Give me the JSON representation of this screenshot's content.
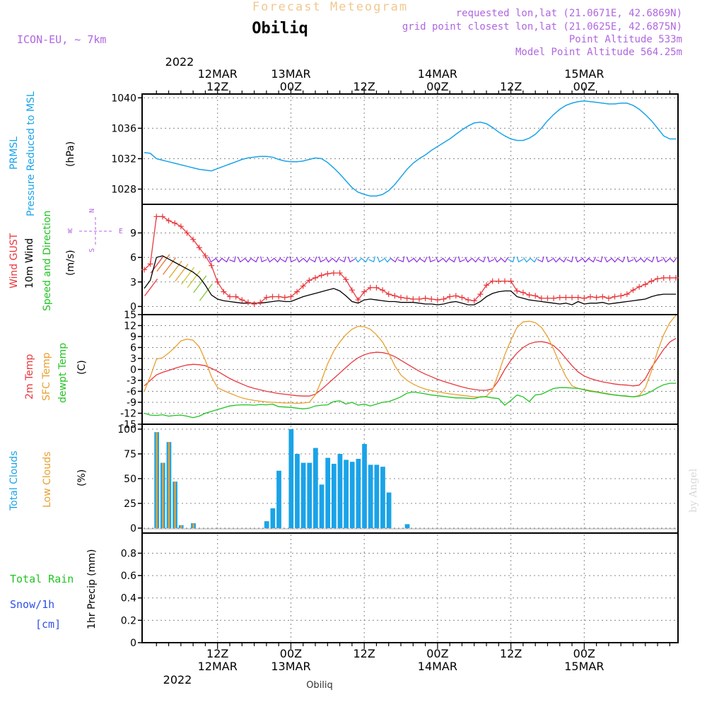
{
  "header": {
    "super_title": "Forecast Meteogram",
    "location": "Obiliq",
    "model": "ICON-EU, ~ 7km",
    "requested": "requested lon,lat (21.0671E, 42.6869N)",
    "grid_point": "grid point closest lon,lat (21.0625E, 42.6875N)",
    "point_alt": "Point Altitude 533m",
    "model_alt": "Model Point Altitude 564.25m"
  },
  "time_axis": {
    "top_year": "2022",
    "top_labels": [
      {
        "t": 12,
        "l1": "12MAR",
        "l2": "12Z"
      },
      {
        "t": 24,
        "l1": "13MAR",
        "l2": "00Z"
      },
      {
        "t": 36,
        "l1": "",
        "l2": "12Z"
      },
      {
        "t": 48,
        "l1": "14MAR",
        "l2": "00Z"
      },
      {
        "t": 60,
        "l1": "",
        "l2": "12Z"
      },
      {
        "t": 72,
        "l1": "15MAR",
        "l2": "00Z"
      }
    ],
    "bottom_labels": [
      {
        "t": 12,
        "l1": "12Z",
        "l2": "12MAR"
      },
      {
        "t": 24,
        "l1": "00Z",
        "l2": "13MAR"
      },
      {
        "t": 36,
        "l1": "12Z",
        "l2": ""
      },
      {
        "t": 48,
        "l1": "00Z",
        "l2": "14MAR"
      },
      {
        "t": 60,
        "l1": "12Z",
        "l2": ""
      },
      {
        "t": 72,
        "l1": "00Z",
        "l2": "15MAR"
      }
    ],
    "bottom_year": "2022",
    "footer_location": "Obiliq"
  },
  "watermark": "by Angel",
  "panels": {
    "pressure": {
      "labels": [
        "PRMSL",
        "Pressure Reduced to MSL"
      ],
      "unit": "(hPa)",
      "ticks": [
        "1028",
        "1032",
        "1036",
        "1040"
      ],
      "color": "#1aa3e8"
    },
    "wind": {
      "labels": [
        "Wind GUST",
        "10m Wind",
        "Speed and Direction"
      ],
      "unit": "(m/s)",
      "ticks": [
        "0",
        "3",
        "6",
        "9"
      ],
      "compass": {
        "n": "N",
        "s": "S",
        "w": "W",
        "e": "E"
      },
      "colors": {
        "gust": "#e8383d",
        "wind": "#000000",
        "dir": "#22c322",
        "arrows": "#8a2be2"
      }
    },
    "temp": {
      "labels": [
        "2m Temp",
        "SFC Temp",
        "dewpt Temp"
      ],
      "unit": "(C)",
      "ticks": [
        "-15",
        "-12",
        "-9",
        "-6",
        "-3",
        "0",
        "3",
        "6",
        "9",
        "12",
        "15"
      ],
      "colors": {
        "t2m": "#e8383d",
        "sfc": "#e8a030",
        "dew": "#22c322"
      }
    },
    "clouds": {
      "labels": [
        "Total Clouds",
        "Low Clouds"
      ],
      "unit": "(%)",
      "ticks": [
        "0",
        "25",
        "50",
        "75",
        "100"
      ],
      "colors": {
        "total": "#1aa3e8",
        "low": "#e8a030"
      }
    },
    "precip": {
      "labels": [
        "Total  Rain",
        "Snow/1h",
        "[cm]"
      ],
      "unit": "1hr Precip (mm)",
      "ticks": [
        "0",
        "0.2",
        "0.4",
        "0.6",
        "0.8"
      ],
      "colors": {
        "rain": "#22c322",
        "snow": "#3050e8"
      }
    }
  },
  "chart_data": [
    {
      "type": "line",
      "title": "PRMSL",
      "ylabel": "(hPa)",
      "ylim": [
        1026,
        1040.5
      ],
      "x": [
        0,
        1,
        2,
        3,
        4,
        5,
        6,
        7,
        8,
        9,
        10,
        11,
        12,
        13,
        14,
        15,
        16,
        17,
        18,
        19,
        20,
        21,
        22,
        23,
        24,
        25,
        26,
        27,
        28,
        29,
        30,
        31,
        32,
        33,
        34,
        35,
        36,
        37,
        38,
        39,
        40,
        41,
        42,
        43,
        44,
        45,
        46,
        47,
        48,
        49,
        50,
        51,
        52,
        53,
        54,
        55,
        56,
        57,
        58,
        59,
        60,
        61,
        62,
        63,
        64,
        65,
        66,
        67,
        68,
        69,
        70,
        71,
        72,
        73,
        74,
        75,
        76,
        77,
        78,
        79,
        80,
        81,
        82,
        83,
        84,
        85,
        86,
        87
      ],
      "series": [
        {
          "name": "PRMSL",
          "values": [
            1032.8,
            1032.7,
            1032.0,
            1031.8,
            1031.6,
            1031.4,
            1031.2,
            1031.0,
            1030.8,
            1030.6,
            1030.5,
            1030.4,
            1030.7,
            1031.0,
            1031.3,
            1031.6,
            1031.9,
            1032.1,
            1032.2,
            1032.3,
            1032.3,
            1032.2,
            1031.9,
            1031.7,
            1031.6,
            1031.6,
            1031.7,
            1031.9,
            1032.1,
            1032.0,
            1031.5,
            1030.8,
            1030.0,
            1029.1,
            1028.2,
            1027.6,
            1027.3,
            1027.1,
            1027.1,
            1027.3,
            1027.8,
            1028.6,
            1029.6,
            1030.6,
            1031.4,
            1032.0,
            1032.5,
            1033.1,
            1033.6,
            1034.1,
            1034.6,
            1035.2,
            1035.8,
            1036.3,
            1036.7,
            1036.8,
            1036.6,
            1036.1,
            1035.5,
            1035.0,
            1034.6,
            1034.4,
            1034.4,
            1034.7,
            1035.2,
            1036.0,
            1037.0,
            1037.8,
            1038.5,
            1039.0,
            1039.3,
            1039.5,
            1039.6,
            1039.5,
            1039.4,
            1039.3,
            1039.2,
            1039.2,
            1039.3,
            1039.3,
            1039.0,
            1038.5,
            1037.8,
            1037.0,
            1036.0,
            1035.0,
            1034.6,
            1034.6
          ]
        }
      ]
    },
    {
      "type": "line",
      "title": "Wind",
      "ylabel": "(m/s)",
      "ylim": [
        -1,
        12.5
      ],
      "x": [
        0,
        1,
        2,
        3,
        4,
        5,
        6,
        7,
        8,
        9,
        10,
        11,
        12,
        13,
        14,
        15,
        16,
        17,
        18,
        19,
        20,
        21,
        22,
        23,
        24,
        25,
        26,
        27,
        28,
        29,
        30,
        31,
        32,
        33,
        34,
        35,
        36,
        37,
        38,
        39,
        40,
        41,
        42,
        43,
        44,
        45,
        46,
        47,
        48,
        49,
        50,
        51,
        52,
        53,
        54,
        55,
        56,
        57,
        58,
        59,
        60,
        61,
        62,
        63,
        64,
        65,
        66,
        67,
        68,
        69,
        70,
        71,
        72,
        73,
        74,
        75,
        76,
        77,
        78,
        79,
        80,
        81,
        82,
        83,
        84,
        85,
        86,
        87
      ],
      "series": [
        {
          "name": "Wind GUST",
          "values": [
            4.5,
            5.2,
            11.0,
            11.0,
            10.5,
            10.2,
            9.8,
            9.0,
            8.2,
            7.2,
            6.2,
            5.0,
            3.0,
            1.8,
            1.2,
            1.2,
            0.8,
            0.5,
            0.3,
            0.5,
            1.1,
            1.2,
            1.2,
            1.1,
            1.2,
            1.8,
            2.5,
            3.2,
            3.5,
            3.8,
            4.0,
            4.1,
            4.1,
            3.3,
            2.0,
            0.8,
            1.8,
            2.3,
            2.3,
            2.0,
            1.5,
            1.3,
            1.1,
            1.0,
            0.9,
            0.9,
            1.0,
            0.9,
            0.8,
            0.9,
            1.2,
            1.3,
            1.1,
            0.8,
            0.7,
            1.5,
            2.6,
            3.1,
            3.1,
            3.1,
            3.1,
            1.9,
            1.7,
            1.4,
            1.3,
            1.0,
            1.0,
            1.0,
            1.1,
            1.1,
            1.1,
            1.1,
            1.0,
            1.2,
            1.1,
            1.2,
            1.0,
            1.2,
            1.3,
            1.5,
            2.0,
            2.4,
            2.7,
            3.1,
            3.4,
            3.5,
            3.5,
            3.5
          ]
        },
        {
          "name": "10m Wind",
          "values": [
            2.2,
            3.2,
            6.0,
            6.2,
            5.8,
            5.4,
            5.0,
            4.6,
            4.2,
            3.6,
            2.6,
            1.4,
            0.9,
            0.7,
            0.6,
            0.5,
            0.4,
            0.4,
            0.4,
            0.4,
            0.5,
            0.6,
            0.7,
            0.6,
            0.6,
            0.9,
            1.2,
            1.4,
            1.6,
            1.8,
            2.0,
            2.2,
            1.9,
            1.3,
            0.6,
            0.4,
            0.8,
            0.9,
            0.8,
            0.7,
            0.6,
            0.6,
            0.5,
            0.5,
            0.5,
            0.4,
            0.3,
            0.3,
            0.2,
            0.3,
            0.5,
            0.6,
            0.4,
            0.2,
            0.2,
            0.6,
            1.2,
            1.6,
            1.8,
            1.9,
            1.9,
            1.2,
            1.0,
            0.8,
            0.7,
            0.6,
            0.5,
            0.4,
            0.3,
            0.4,
            0.2,
            0.6,
            0.3,
            0.4,
            0.4,
            0.5,
            0.3,
            0.4,
            0.5,
            0.6,
            0.7,
            0.8,
            0.9,
            1.2,
            1.4,
            1.5,
            1.5,
            1.5
          ]
        }
      ]
    },
    {
      "type": "line",
      "title": "Temperature",
      "ylabel": "(C)",
      "ylim": [
        -15,
        15
      ],
      "x": [
        0,
        1,
        2,
        3,
        4,
        5,
        6,
        7,
        8,
        9,
        10,
        11,
        12,
        13,
        14,
        15,
        16,
        17,
        18,
        19,
        20,
        21,
        22,
        23,
        24,
        25,
        26,
        27,
        28,
        29,
        30,
        31,
        32,
        33,
        34,
        35,
        36,
        37,
        38,
        39,
        40,
        41,
        42,
        43,
        44,
        45,
        46,
        47,
        48,
        49,
        50,
        51,
        52,
        53,
        54,
        55,
        56,
        57,
        58,
        59,
        60,
        61,
        62,
        63,
        64,
        65,
        66,
        67,
        68,
        69,
        70,
        71,
        72,
        73,
        74,
        75,
        76,
        77,
        78,
        79,
        80,
        81,
        82,
        83,
        84,
        85,
        86,
        87
      ],
      "series": [
        {
          "name": "2m Temp",
          "values": [
            -4.5,
            -3.0,
            -1.5,
            -0.8,
            -0.3,
            0.3,
            0.8,
            1.2,
            1.4,
            1.3,
            1.0,
            0.3,
            -0.5,
            -1.5,
            -2.5,
            -3.3,
            -4.0,
            -4.7,
            -5.2,
            -5.6,
            -6.0,
            -6.3,
            -6.6,
            -6.8,
            -7.0,
            -7.2,
            -7.3,
            -7.3,
            -6.8,
            -5.5,
            -4.0,
            -2.5,
            -1.0,
            0.5,
            2.0,
            3.2,
            4.0,
            4.5,
            4.7,
            4.6,
            4.2,
            3.5,
            2.5,
            1.5,
            0.5,
            -0.5,
            -1.3,
            -2.0,
            -2.7,
            -3.3,
            -3.8,
            -4.3,
            -4.8,
            -5.2,
            -5.5,
            -5.7,
            -5.7,
            -5.3,
            -3.0,
            0.0,
            2.5,
            4.5,
            6.0,
            7.0,
            7.5,
            7.6,
            7.3,
            6.5,
            5.0,
            3.0,
            1.0,
            -0.7,
            -1.8,
            -2.5,
            -3.0,
            -3.4,
            -3.7,
            -4.0,
            -4.2,
            -4.3,
            -4.5,
            -4.3,
            -2.5,
            0.5,
            3.0,
            5.5,
            7.5,
            8.5
          ]
        },
        {
          "name": "SFC Temp",
          "values": [
            -6.0,
            -2.0,
            2.8,
            3.2,
            4.5,
            6.0,
            7.8,
            8.3,
            8.0,
            6.2,
            2.5,
            -2.0,
            -5.0,
            -5.8,
            -6.5,
            -7.2,
            -7.8,
            -8.2,
            -8.5,
            -8.7,
            -8.9,
            -9.0,
            -9.1,
            -9.2,
            -9.2,
            -9.3,
            -9.2,
            -9.0,
            -7.0,
            -3.0,
            1.5,
            5.0,
            7.5,
            9.5,
            11.0,
            11.8,
            11.7,
            11.0,
            9.5,
            7.5,
            4.5,
            1.0,
            -1.5,
            -3.0,
            -4.0,
            -4.8,
            -5.4,
            -5.8,
            -6.1,
            -6.4,
            -6.7,
            -6.9,
            -7.1,
            -7.3,
            -7.5,
            -7.6,
            -7.4,
            -5.5,
            -1.0,
            4.0,
            8.0,
            11.5,
            13.0,
            13.2,
            12.8,
            11.5,
            9.0,
            5.5,
            1.5,
            -2.0,
            -4.5,
            -5.2,
            -5.5,
            -5.8,
            -6.1,
            -6.4,
            -6.7,
            -7.0,
            -7.2,
            -7.4,
            -7.5,
            -7.2,
            -5.0,
            -0.5,
            5.0,
            9.5,
            12.8,
            14.8
          ]
        },
        {
          "name": "dewpt Temp",
          "values": [
            -12.0,
            -12.5,
            -12.6,
            -12.4,
            -12.8,
            -12.6,
            -12.5,
            -12.8,
            -13.2,
            -12.8,
            -12.0,
            -11.5,
            -11.0,
            -10.5,
            -10.0,
            -9.8,
            -9.7,
            -9.7,
            -9.8,
            -9.6,
            -9.7,
            -9.5,
            -10.2,
            -10.3,
            -10.4,
            -10.6,
            -10.8,
            -10.6,
            -10.0,
            -9.8,
            -9.7,
            -8.8,
            -8.6,
            -9.5,
            -9.0,
            -9.8,
            -9.5,
            -10.0,
            -9.5,
            -9.0,
            -8.8,
            -8.2,
            -7.5,
            -6.5,
            -6.2,
            -6.4,
            -6.7,
            -7.0,
            -7.2,
            -7.4,
            -7.6,
            -7.8,
            -7.8,
            -7.9,
            -8.0,
            -7.5,
            -7.5,
            -7.8,
            -8.0,
            -9.8,
            -8.5,
            -7.0,
            -7.5,
            -8.8,
            -7.0,
            -6.8,
            -6.0,
            -5.2,
            -5.0,
            -5.0,
            -5.1,
            -5.2,
            -5.6,
            -6.0,
            -6.2,
            -6.5,
            -6.8,
            -7.0,
            -7.2,
            -7.3,
            -7.5,
            -7.3,
            -6.8,
            -6.0,
            -5.0,
            -4.2,
            -3.8,
            -3.8
          ]
        }
      ]
    },
    {
      "type": "bar",
      "title": "Clouds",
      "ylabel": "(%)",
      "ylim": [
        -5,
        105
      ],
      "x": [
        1,
        2,
        3,
        4,
        5,
        6,
        7,
        8,
        9,
        10,
        11,
        12,
        13,
        14,
        15,
        16,
        17,
        18,
        19,
        20,
        21,
        22,
        23,
        24,
        25,
        26,
        27,
        28,
        29,
        30,
        31,
        32,
        33,
        34,
        35,
        36,
        37,
        38,
        39,
        40,
        41,
        42,
        43,
        44,
        45,
        46,
        47,
        48,
        49,
        50
      ],
      "series": [
        {
          "name": "Total Clouds",
          "values": [
            97,
            66,
            87,
            47,
            3,
            0,
            5,
            0,
            0,
            0,
            0,
            0,
            0,
            0,
            0,
            0,
            0,
            0,
            7,
            20,
            58,
            0,
            100,
            75,
            66,
            66,
            81,
            44,
            71,
            65,
            75,
            69,
            67,
            70,
            85,
            64,
            64,
            62,
            36,
            0,
            0,
            4,
            0,
            0,
            0,
            0,
            0,
            0,
            0,
            0
          ]
        },
        {
          "name": "Low Clouds",
          "values": [
            97,
            66,
            87,
            47,
            3,
            0,
            5,
            0,
            0,
            0,
            0,
            0,
            0,
            0,
            0,
            0,
            0,
            0,
            0,
            0,
            0,
            0,
            0,
            0,
            0,
            0,
            0,
            0,
            0,
            0,
            0,
            0,
            0,
            0,
            0,
            0,
            0,
            0,
            0,
            0,
            0,
            0,
            0,
            0,
            0,
            0,
            0,
            0,
            0,
            0
          ]
        }
      ]
    },
    {
      "type": "bar",
      "title": "Precipitation",
      "ylabel": "1hr Precip (mm)",
      "ylim": [
        0,
        0.98
      ],
      "x": [
        0,
        87
      ],
      "series": [
        {
          "name": "Total Rain",
          "values": [
            0,
            0
          ]
        },
        {
          "name": "Snow/1h",
          "values": [
            0,
            0
          ]
        }
      ]
    }
  ]
}
